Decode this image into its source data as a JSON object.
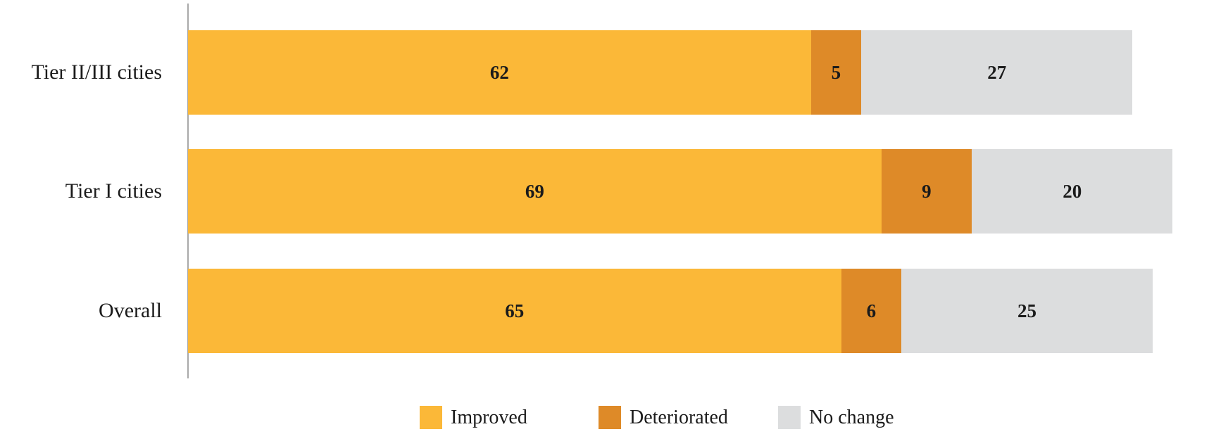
{
  "chart_data": {
    "type": "bar",
    "orientation": "horizontal",
    "stacked": true,
    "title": "",
    "xlabel": "",
    "ylabel": "",
    "xlim": [
      0,
      100
    ],
    "grid": false,
    "value_labels": true,
    "categories": [
      "Tier II/III cities",
      "Tier I cities",
      "Overall"
    ],
    "series": [
      {
        "name": "Improved",
        "color": "#FBB838",
        "values": [
          62,
          69,
          65
        ]
      },
      {
        "name": "Deteriorated",
        "color": "#DE8A28",
        "values": [
          5,
          9,
          6
        ]
      },
      {
        "name": "No change",
        "color": "#DCDDDE",
        "values": [
          27,
          20,
          25
        ]
      }
    ],
    "legend": {
      "position": "bottom",
      "items": [
        {
          "label": "Improved",
          "color": "#FBB838"
        },
        {
          "label": "Deteriorated",
          "color": "#DE8A28"
        },
        {
          "label": "No change",
          "color": "#DCDDDE"
        }
      ]
    }
  },
  "colors": {
    "axis": "#A8A8A8",
    "text": "#1B1B1B",
    "background": "#FFFFFF"
  }
}
